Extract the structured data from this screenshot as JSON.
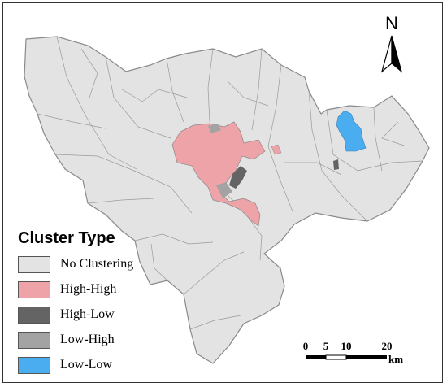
{
  "map": {
    "north_label": "N",
    "legend": {
      "title": "Cluster Type",
      "items": [
        {
          "label": "No Clustering",
          "color": "#e3e3e3"
        },
        {
          "label": "High-High",
          "color": "#eda3a7"
        },
        {
          "label": "High-Low",
          "color": "#646464"
        },
        {
          "label": "Low-High",
          "color": "#a3a3a3"
        },
        {
          "label": "Low-Low",
          "color": "#4aadf0"
        }
      ]
    },
    "scale_bar": {
      "ticks": [
        "0",
        "5",
        "10",
        "20"
      ],
      "unit": "km"
    }
  }
}
